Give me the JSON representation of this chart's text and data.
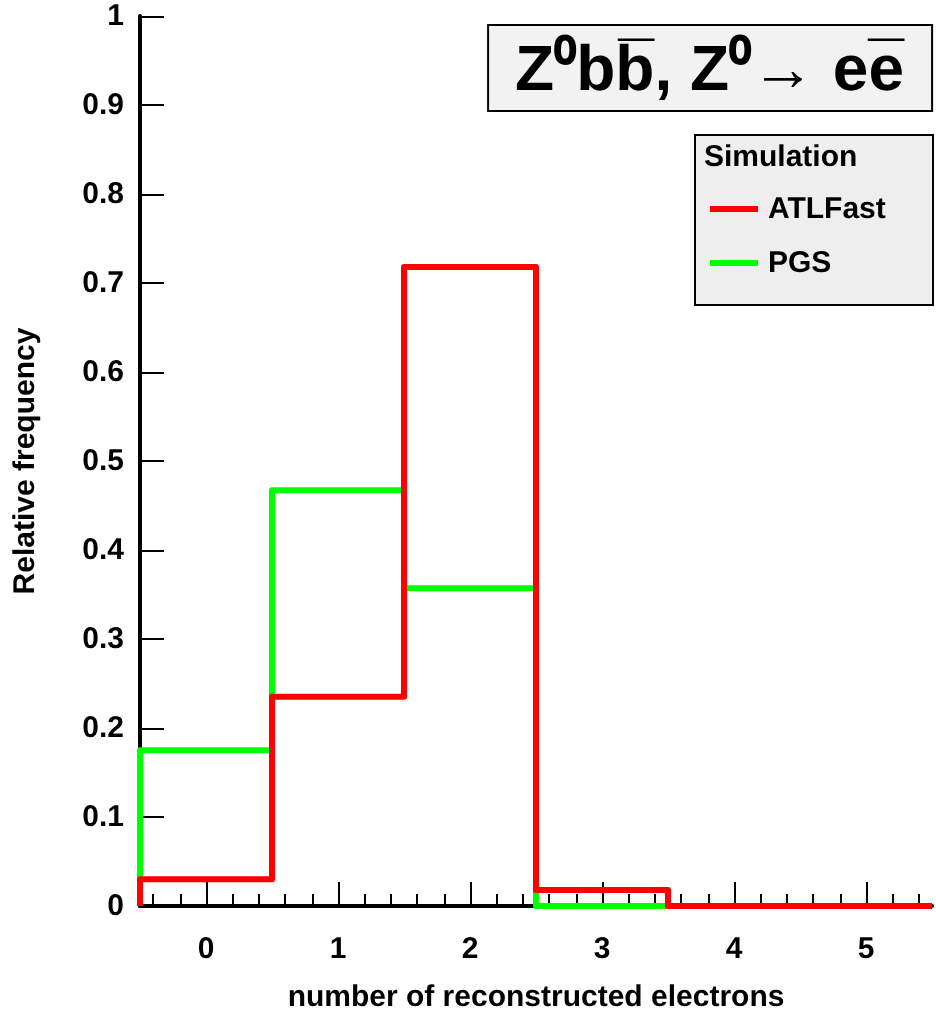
{
  "chart_data": {
    "type": "histogram",
    "title": "Z⁰bb̅, Z⁰→ ee̅",
    "xlabel": "number of reconstructed electrons",
    "ylabel": "Relative frequency",
    "legend_title": "Simulation",
    "legend": "top right",
    "bins": [
      -0.5,
      0.5,
      1.5,
      2.5,
      3.5,
      4.5,
      5.5
    ],
    "series": [
      {
        "name": "ATLFast",
        "color": "#ff0000",
        "values": [
          0.03,
          0.235,
          0.718,
          0.018,
          0,
          0
        ]
      },
      {
        "name": "PGS",
        "color": "#00ff00",
        "values": [
          0.175,
          0.467,
          0.357,
          0,
          0,
          0
        ]
      }
    ],
    "xlim": [
      -0.5,
      5.5
    ],
    "xticks": [
      0,
      1,
      2,
      3,
      4,
      5
    ],
    "ylim": [
      0,
      1
    ],
    "yticks": [
      0,
      0.1,
      0.2,
      0.3,
      0.4,
      0.5,
      0.6,
      0.7,
      0.8,
      0.9,
      1
    ],
    "grid": false
  }
}
